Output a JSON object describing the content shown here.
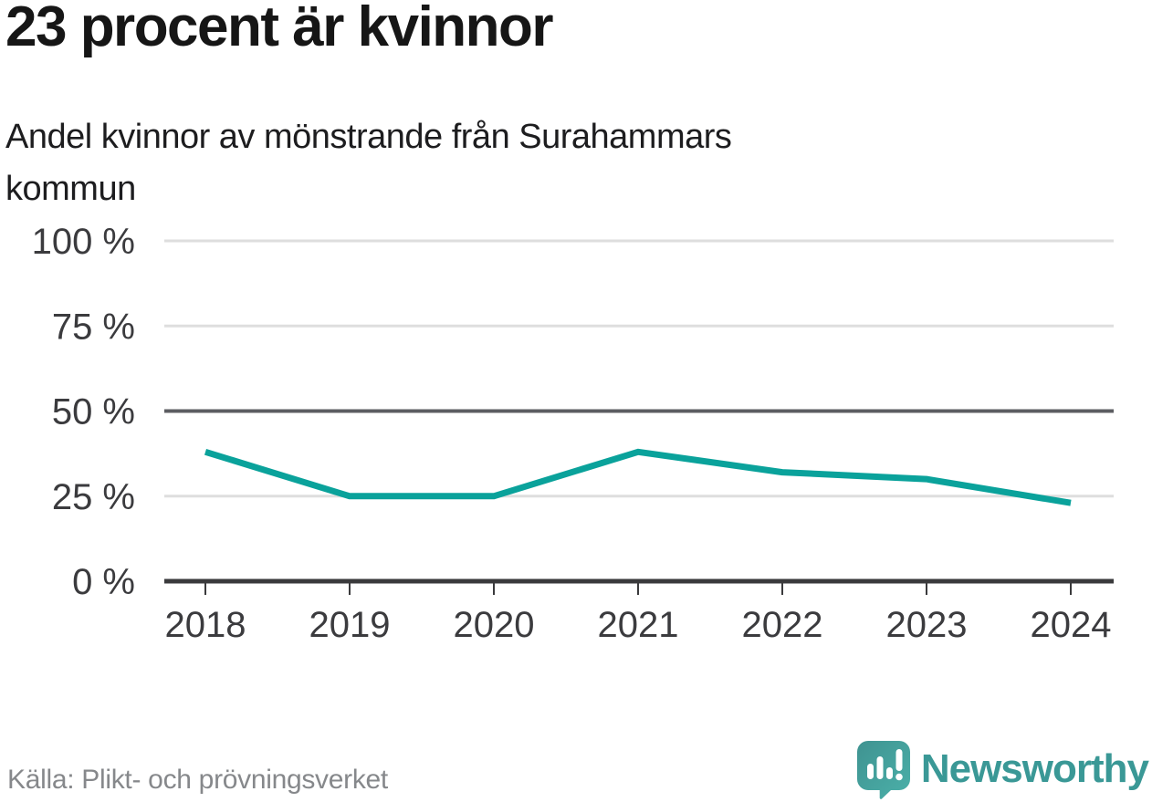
{
  "chart_data": {
    "type": "line",
    "title": "23 procent är kvinnor",
    "subtitle": "Andel kvinnor av mönstrande från Surahammars kommun",
    "categories": [
      "2018",
      "2019",
      "2020",
      "2021",
      "2022",
      "2023",
      "2024"
    ],
    "series": [
      {
        "name": "Andel kvinnor av mönstrande",
        "values": [
          38,
          25,
          25,
          38,
          32,
          30,
          23
        ]
      }
    ],
    "ylim": [
      0,
      100
    ],
    "yticks": [
      0,
      25,
      50,
      75,
      100
    ],
    "ytick_labels": [
      "0 %",
      "25 %",
      "50 %",
      "75 %",
      "100 %"
    ],
    "grid": "horizontal",
    "legend": "none",
    "line_color": "#0aa29b",
    "emphasized_gridline": 50
  },
  "footer": {
    "source": "Källa: Plikt- och prövningsverket",
    "brand": "Newsworthy"
  }
}
